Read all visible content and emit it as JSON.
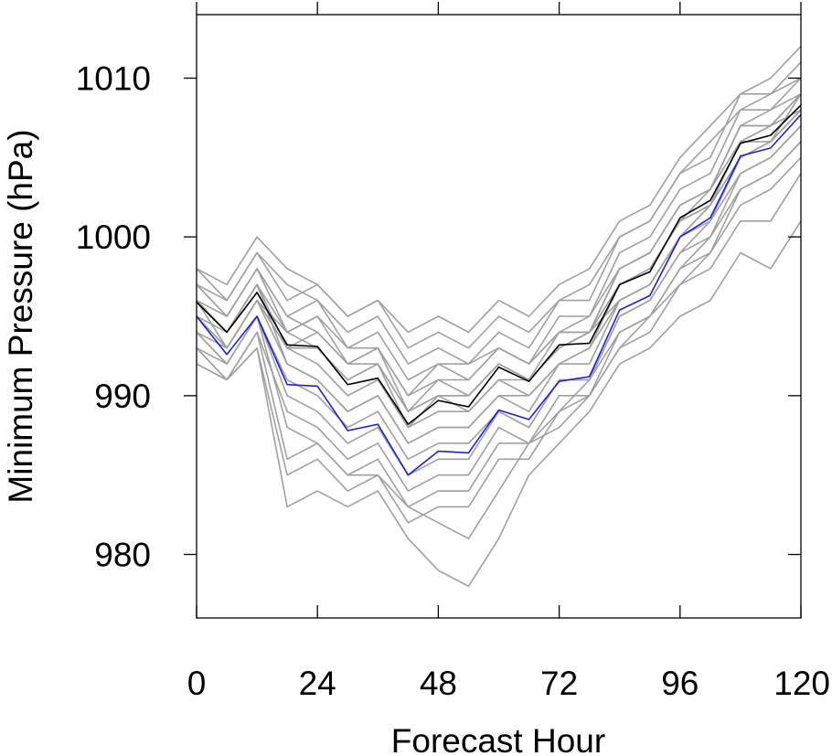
{
  "chart_data": {
    "type": "line",
    "title": "",
    "xlabel": "Forecast Hour",
    "ylabel": "Minimum Pressure (hPa)",
    "xlim": [
      0,
      120
    ],
    "ylim": [
      976,
      1014
    ],
    "xticks": [
      0,
      24,
      48,
      72,
      96,
      120
    ],
    "xtick_labels": [
      "0",
      "24",
      "48",
      "72",
      "96",
      "120"
    ],
    "yticks": [
      980,
      990,
      1000,
      1010
    ],
    "ytick_labels": [
      "980",
      "990",
      "1000",
      "1010"
    ],
    "grid": false,
    "legend": "none",
    "x": [
      0,
      6,
      12,
      18,
      24,
      30,
      36,
      42,
      48,
      54,
      60,
      66,
      72,
      78,
      84,
      90,
      96,
      102,
      108,
      114,
      120
    ],
    "series": [
      {
        "color": "#000000",
        "values": [
          995.9,
          994.0,
          996.5,
          993.2,
          993.1,
          990.7,
          991.1,
          988.2,
          989.7,
          989.3,
          991.8,
          990.9,
          993.2,
          993.3,
          997.0,
          997.8,
          1001.2,
          1002.3,
          1005.9,
          1006.4,
          1008.3
        ]
      },
      {
        "color": "#1f1fd6",
        "values": [
          995.0,
          992.6,
          995.0,
          990.7,
          990.6,
          987.8,
          988.2,
          985.0,
          986.5,
          986.4,
          989.1,
          988.5,
          990.9,
          991.2,
          995.4,
          996.3,
          1000.0,
          1001.2,
          1005.1,
          1005.6,
          1007.7
        ]
      }
    ],
    "ensemble_color": "#a0a0a0",
    "ensemble": [
      [
        996,
        994,
        997,
        994,
        995,
        992,
        993,
        989,
        991,
        990,
        992,
        991,
        994,
        994,
        998,
        999,
        1002,
        1003,
        1007,
        1007,
        1009
      ],
      [
        997,
        995,
        998,
        995,
        996,
        993,
        994,
        991,
        992,
        992,
        993,
        992,
        995,
        995,
        999,
        1000,
        1003,
        1004,
        1008,
        1008,
        1010
      ],
      [
        998,
        996,
        999,
        996,
        997,
        995,
        996,
        993,
        994,
        993,
        995,
        994,
        996,
        996,
        1000,
        1001,
        1004,
        1005,
        1009,
        1009,
        1011
      ],
      [
        995,
        993,
        996,
        993,
        992,
        990,
        991,
        988,
        989,
        989,
        991,
        990,
        992,
        993,
        996,
        997,
        1000,
        1001,
        1005,
        1006,
        1008
      ],
      [
        994,
        992,
        995,
        991,
        990,
        988,
        989,
        986,
        987,
        987,
        989,
        988,
        991,
        991,
        995,
        996,
        999,
        1000,
        1004,
        1005,
        1007
      ],
      [
        993,
        991,
        994,
        989,
        988,
        986,
        987,
        984,
        985,
        985,
        988,
        987,
        990,
        990,
        994,
        995,
        998,
        999,
        1003,
        1004,
        1006
      ],
      [
        996,
        995,
        998,
        995,
        994,
        992,
        993,
        990,
        991,
        991,
        993,
        992,
        994,
        995,
        998,
        999,
        1002,
        1003,
        1007,
        1008,
        1009
      ],
      [
        997,
        996,
        999,
        997,
        996,
        994,
        995,
        992,
        993,
        992,
        994,
        993,
        996,
        997,
        1000,
        1001,
        1004,
        1006,
        1008,
        1009,
        1010
      ],
      [
        998,
        997,
        1000,
        998,
        997,
        995,
        996,
        994,
        995,
        994,
        996,
        995,
        997,
        998,
        1001,
        1002,
        1005,
        1007,
        1009,
        1010,
        1012
      ],
      [
        994,
        993,
        996,
        992,
        991,
        989,
        990,
        987,
        988,
        988,
        990,
        989,
        992,
        992,
        996,
        997,
        1000,
        1002,
        1005,
        1006,
        1008
      ],
      [
        995,
        994,
        997,
        993,
        993,
        991,
        992,
        989,
        990,
        990,
        992,
        991,
        993,
        994,
        997,
        998,
        1001,
        1002,
        1006,
        1006,
        1009
      ],
      [
        993,
        992,
        995,
        990,
        989,
        987,
        988,
        985,
        986,
        986,
        989,
        988,
        991,
        991,
        995,
        996,
        999,
        1001,
        1004,
        1005,
        1007
      ],
      [
        992,
        991,
        993,
        985,
        986,
        984,
        985,
        982,
        983,
        983,
        986,
        986,
        989,
        990,
        993,
        994,
        997,
        999,
        1002,
        1003,
        1005
      ],
      [
        993,
        991,
        994,
        986,
        987,
        985,
        986,
        983,
        984,
        984,
        987,
        987,
        989,
        991,
        994,
        995,
        998,
        1000,
        1003,
        1004,
        1006
      ],
      [
        992,
        991,
        993,
        983,
        984,
        983,
        984,
        981,
        979,
        978,
        981,
        985,
        987,
        989,
        992,
        993,
        995,
        996,
        999,
        998,
        1001
      ],
      [
        994,
        992,
        995,
        988,
        987,
        985,
        985,
        983,
        982,
        981,
        984,
        987,
        988,
        990,
        993,
        995,
        997,
        998,
        1001,
        1001,
        1004
      ],
      [
        996,
        994,
        997,
        992,
        991,
        989,
        990,
        987,
        988,
        988,
        990,
        990,
        992,
        993,
        997,
        998,
        1001,
        1002,
        1006,
        1007,
        1008
      ],
      [
        997,
        995,
        998,
        994,
        993,
        991,
        992,
        988,
        990,
        989,
        991,
        991,
        993,
        994,
        998,
        999,
        1002,
        1003,
        1007,
        1007,
        1009
      ],
      [
        995,
        993,
        996,
        994,
        995,
        993,
        993,
        990,
        992,
        991,
        993,
        992,
        994,
        994,
        997,
        998,
        1001,
        1003,
        1006,
        1007,
        1009
      ],
      [
        996,
        993,
        996,
        993,
        994,
        992,
        992,
        989,
        990,
        990,
        992,
        991,
        993,
        994,
        996,
        997,
        1000,
        1002,
        1005,
        1006,
        1008
      ]
    ]
  }
}
